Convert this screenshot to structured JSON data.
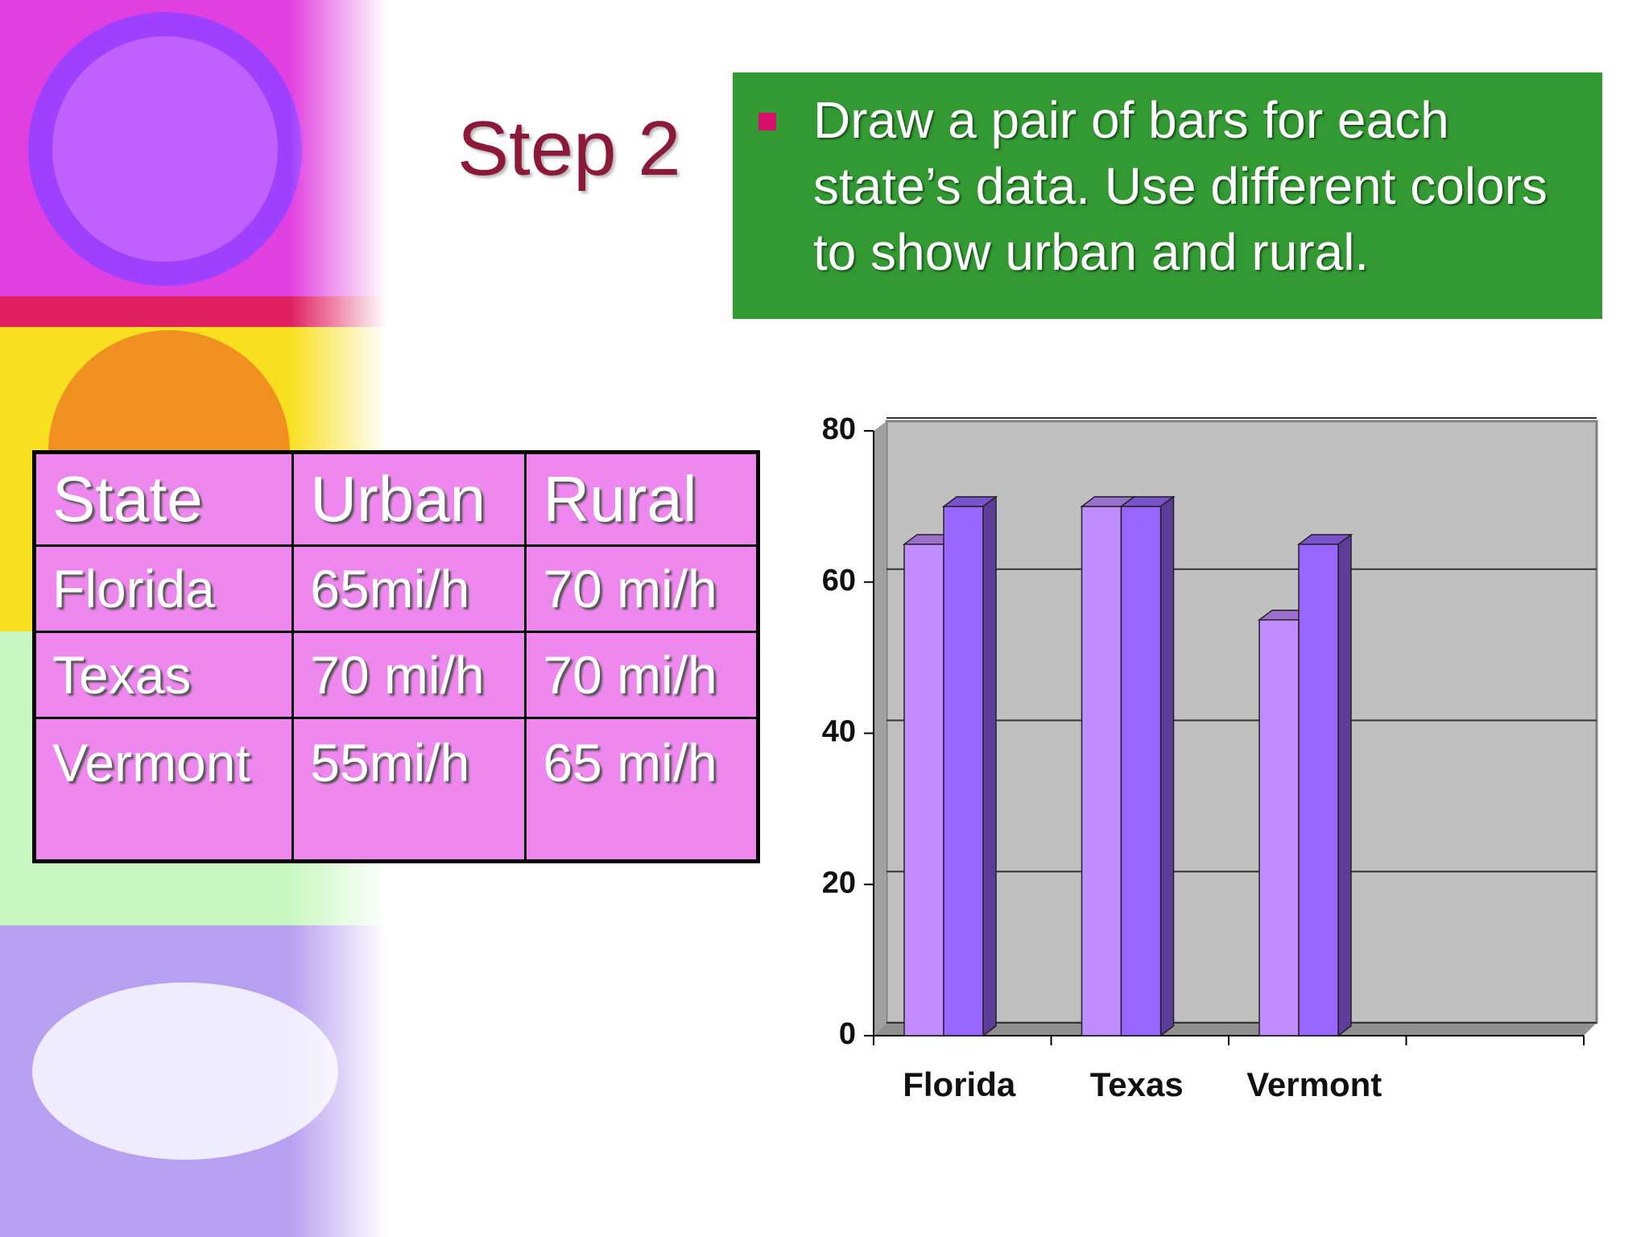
{
  "title": "Step 2",
  "bullet": "Draw a pair of bars for each state’s data. Use different colors to show urban and rural.",
  "table": {
    "header": [
      "State",
      "Urban",
      "Rural"
    ],
    "rows": [
      [
        "Florida",
        "65mi/h",
        "70 mi/h"
      ],
      [
        "Texas",
        "70 mi/h",
        "70 mi/h"
      ],
      [
        "Vermont",
        "55mi/h",
        "65 mi/h"
      ]
    ]
  },
  "chart_data": {
    "type": "bar3d",
    "categories": [
      "Florida",
      "Texas",
      "Vermont",
      null
    ],
    "series": [
      {
        "color": "#c08cff",
        "values": [
          65,
          70,
          55,
          null
        ]
      },
      {
        "color": "#9966ff",
        "values": [
          70,
          70,
          65,
          null
        ]
      }
    ],
    "ylim": [
      0,
      80
    ],
    "yticks": [
      0,
      20,
      40,
      60,
      80
    ],
    "grid": true
  }
}
